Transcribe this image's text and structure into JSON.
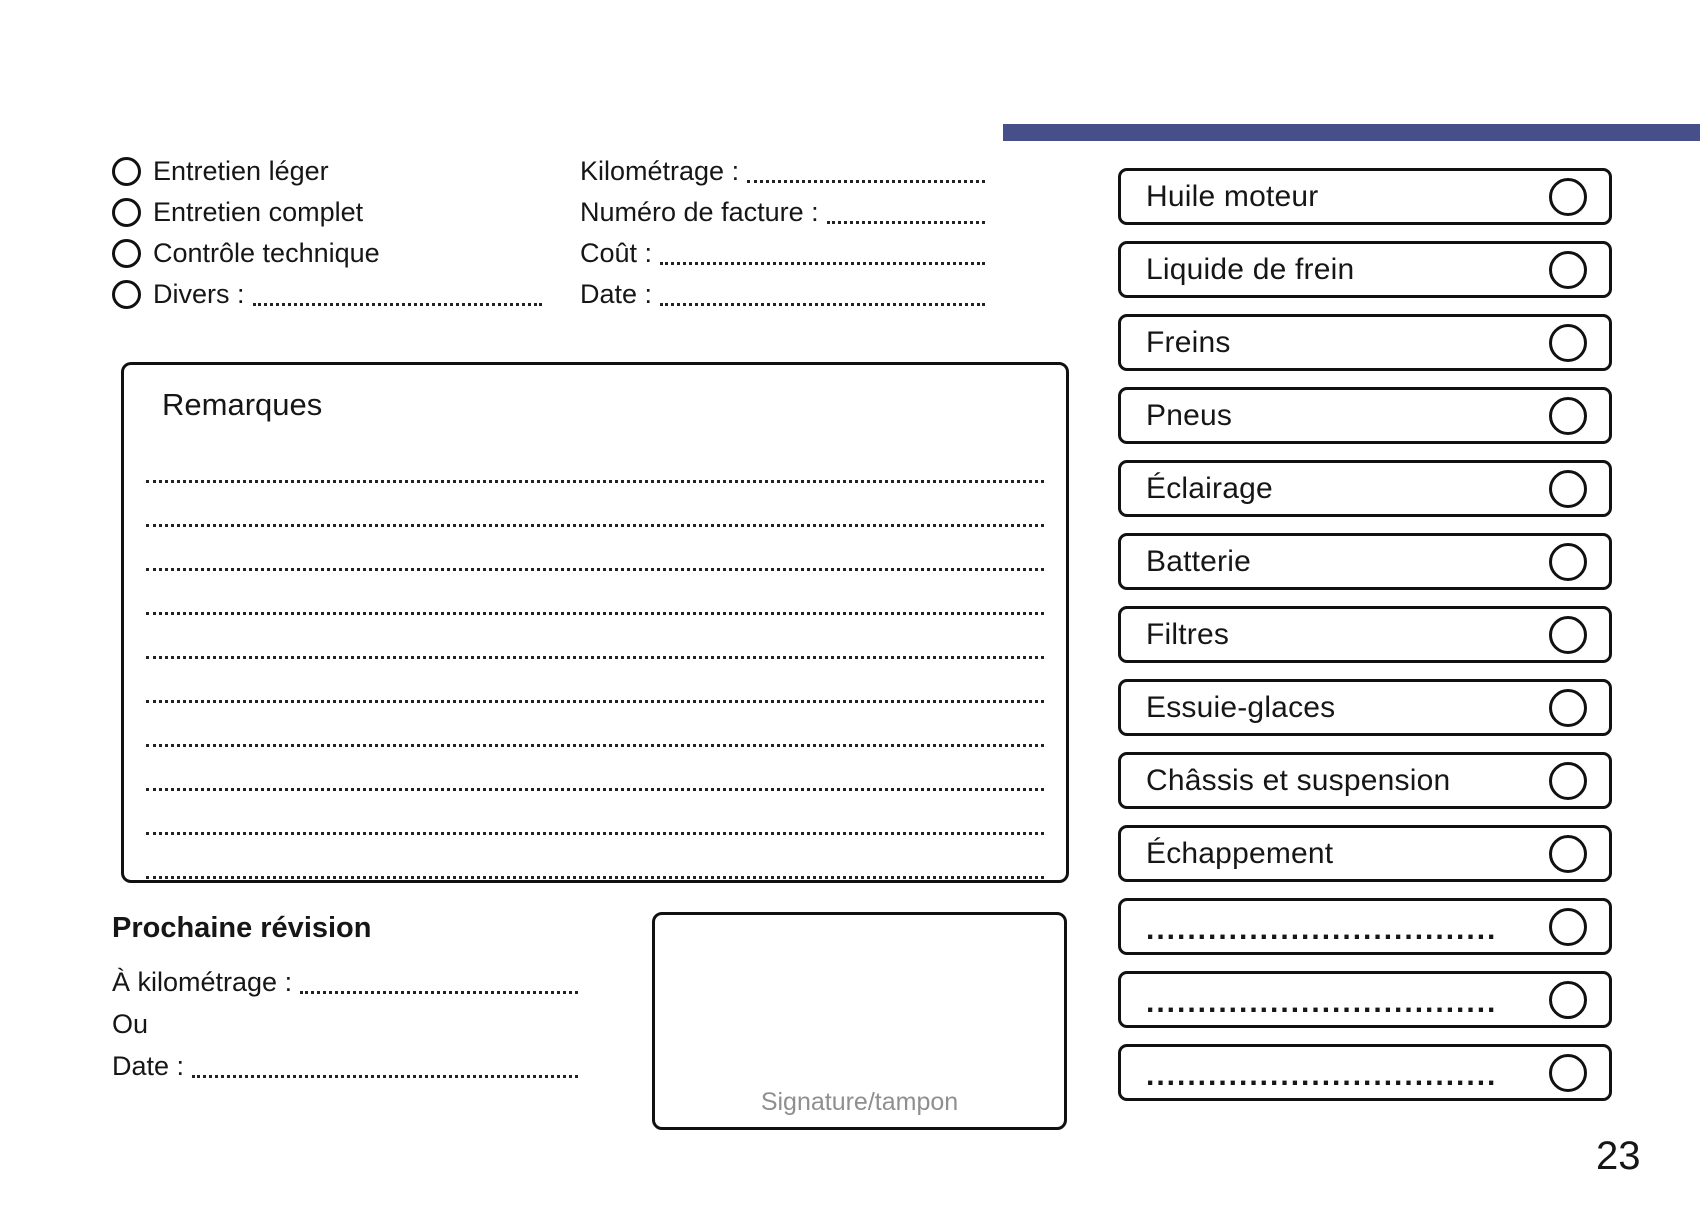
{
  "page": {
    "number": "23",
    "accent_color": "#474f8b"
  },
  "service_type_options": [
    {
      "label": "Entretien léger",
      "dots": false
    },
    {
      "label": "Entretien complet",
      "dots": false
    },
    {
      "label": "Contrôle technique",
      "dots": false
    },
    {
      "label": "Divers :",
      "dots": true
    }
  ],
  "invoice_fields": [
    {
      "label": "Kilométrage :"
    },
    {
      "label": "Numéro de facture :"
    },
    {
      "label": "Coût :"
    },
    {
      "label": "Date :"
    }
  ],
  "remarks": {
    "title": "Remarques",
    "line_count": 10
  },
  "next_service": {
    "title": "Prochaine révision",
    "fields": [
      {
        "label": "À kilométrage :",
        "dots": true
      },
      {
        "label": "Ou",
        "dots": false
      },
      {
        "label": "Date :",
        "dots": true
      }
    ]
  },
  "signature": {
    "label": "Signature/tampon"
  },
  "checklist": {
    "items": [
      {
        "label": "Huile moteur",
        "blank": false
      },
      {
        "label": "Liquide de frein",
        "blank": false
      },
      {
        "label": "Freins",
        "blank": false
      },
      {
        "label": "Pneus",
        "blank": false
      },
      {
        "label": "Éclairage",
        "blank": false
      },
      {
        "label": "Batterie",
        "blank": false
      },
      {
        "label": "Filtres",
        "blank": false
      },
      {
        "label": "Essuie-glaces",
        "blank": false
      },
      {
        "label": "Châssis et suspension",
        "blank": false
      },
      {
        "label": "Échappement",
        "blank": false
      },
      {
        "label": "..................................",
        "blank": true
      },
      {
        "label": "..................................",
        "blank": true
      },
      {
        "label": "..................................",
        "blank": true
      }
    ]
  }
}
